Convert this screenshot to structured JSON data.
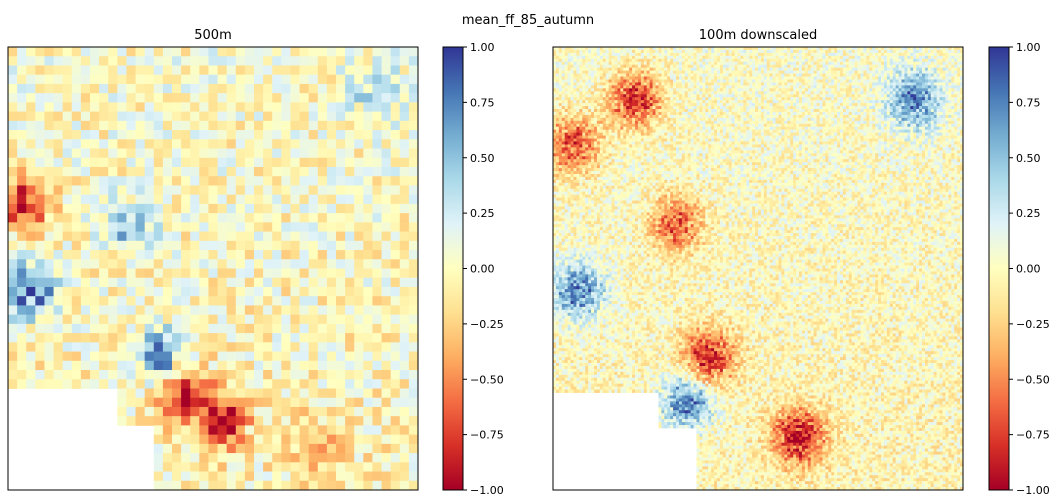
{
  "figure": {
    "suptitle": "mean_ff_85_autumn"
  },
  "chart_data": [
    {
      "type": "heatmap",
      "title": "500m",
      "colormap": "RdYlBu",
      "vmin": -1.0,
      "vmax": 1.0,
      "colorbar_ticks": [
        "1.00",
        "0.75",
        "0.50",
        "0.25",
        "0.00",
        "−0.25",
        "−0.50",
        "−0.75",
        "−1.00"
      ],
      "grid": false,
      "nodata": "white area in lower-left",
      "hotspots": [
        {
          "x": 0.42,
          "y": 0.78,
          "value": -1.0
        },
        {
          "x": 0.52,
          "y": 0.84,
          "value": -0.95
        },
        {
          "x": 0.38,
          "y": 0.7,
          "value": 0.85
        },
        {
          "x": 0.05,
          "y": 0.55,
          "value": 0.9
        },
        {
          "x": 0.04,
          "y": 0.35,
          "value": -0.9
        },
        {
          "x": 0.3,
          "y": 0.4,
          "value": 0.5
        },
        {
          "x": 0.9,
          "y": 0.1,
          "value": 0.4
        },
        {
          "x": 0.75,
          "y": 0.9,
          "value": -0.4
        }
      ]
    },
    {
      "type": "heatmap",
      "title": "100m downscaled",
      "colormap": "RdYlBu",
      "vmin": -1.0,
      "vmax": 1.0,
      "colorbar_ticks": [
        "1.00",
        "0.75",
        "0.50",
        "0.25",
        "0.00",
        "−0.25",
        "−0.50",
        "−0.75",
        "−1.00"
      ],
      "grid": false,
      "nodata": "white area in lower-left",
      "hotspots": [
        {
          "x": 0.6,
          "y": 0.88,
          "value": -1.0
        },
        {
          "x": 0.38,
          "y": 0.7,
          "value": -0.95
        },
        {
          "x": 0.33,
          "y": 0.8,
          "value": 0.85
        },
        {
          "x": 0.06,
          "y": 0.55,
          "value": 0.8
        },
        {
          "x": 0.88,
          "y": 0.12,
          "value": 0.8
        },
        {
          "x": 0.2,
          "y": 0.12,
          "value": -0.9
        },
        {
          "x": 0.05,
          "y": 0.22,
          "value": -0.8
        },
        {
          "x": 0.3,
          "y": 0.4,
          "value": -0.7
        }
      ]
    }
  ]
}
